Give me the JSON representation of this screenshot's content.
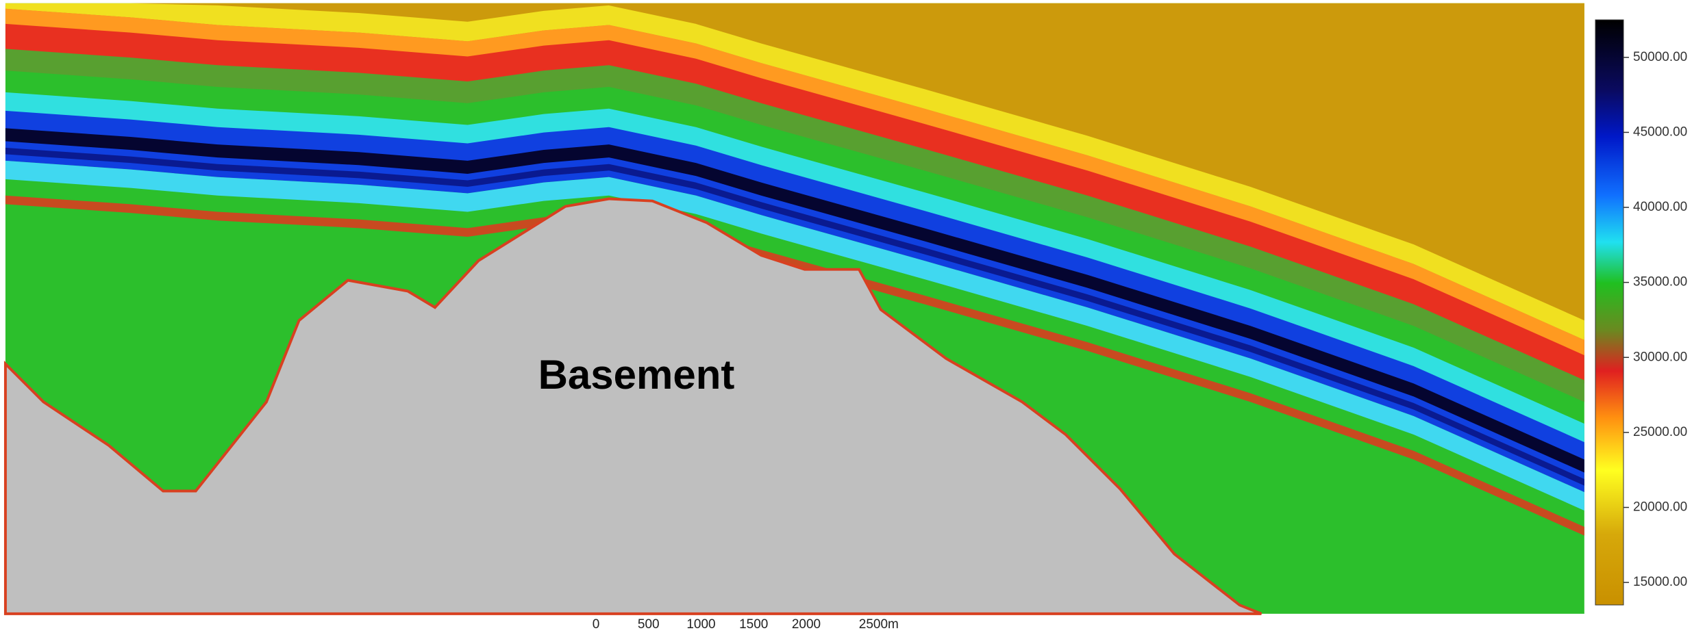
{
  "label": "Basement",
  "colorbar": {
    "lim": [
      13500,
      52500
    ],
    "ticks": [
      {
        "value": 50000,
        "label": "50000.00"
      },
      {
        "value": 45000,
        "label": "45000.00"
      },
      {
        "value": 40000,
        "label": "40000.00"
      },
      {
        "value": 35000,
        "label": "35000.00"
      },
      {
        "value": 30000,
        "label": "30000.00"
      },
      {
        "value": 25000,
        "label": "25000.00"
      },
      {
        "value": 20000,
        "label": "20000.00"
      },
      {
        "value": 15000,
        "label": "15000.00"
      }
    ]
  },
  "scale_bar": {
    "ticks": [
      0,
      500,
      1000,
      1500,
      2000,
      {
        "value": 2500,
        "label": "2500m"
      }
    ]
  }
}
